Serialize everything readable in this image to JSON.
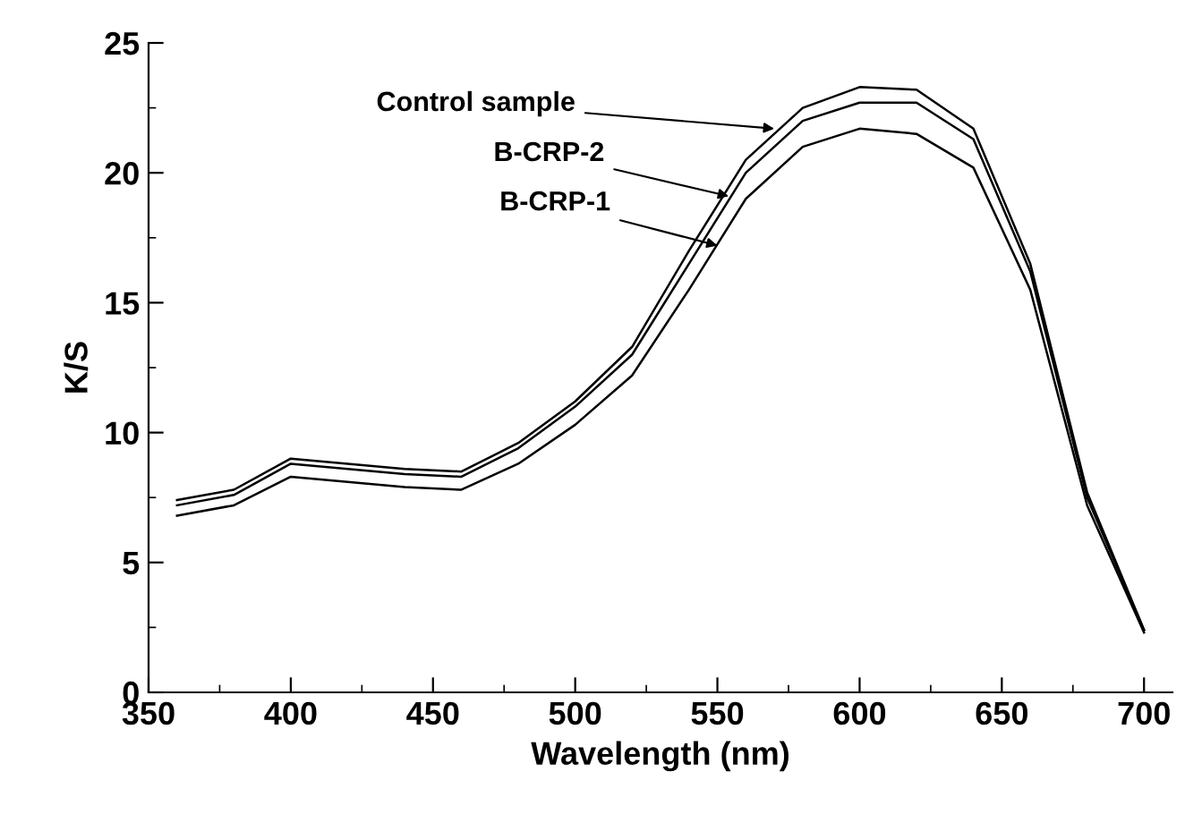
{
  "chart_data": {
    "type": "line",
    "xlabel": "Wavelength (nm)",
    "ylabel": "K/S",
    "x": [
      360,
      380,
      400,
      420,
      440,
      460,
      480,
      500,
      520,
      540,
      560,
      580,
      600,
      620,
      640,
      660,
      680,
      700
    ],
    "series": [
      {
        "color": "#000000",
        "values": [
          7.4,
          7.8,
          9.0,
          8.8,
          8.6,
          8.5,
          9.6,
          11.2,
          13.3,
          17.0,
          20.5,
          22.5,
          23.3,
          23.2,
          21.7,
          16.5,
          7.7,
          2.4
        ]
      },
      {
        "color": "#000000",
        "values": [
          7.2,
          7.6,
          8.8,
          8.6,
          8.4,
          8.3,
          9.4,
          11.0,
          13.0,
          16.5,
          20.0,
          22.0,
          22.7,
          22.7,
          21.3,
          16.2,
          7.5,
          2.4
        ]
      },
      {
        "color": "#000000",
        "values": [
          6.8,
          7.2,
          8.3,
          8.1,
          7.9,
          7.8,
          8.8,
          10.3,
          12.2,
          15.5,
          19.0,
          21.0,
          21.7,
          21.5,
          20.2,
          15.5,
          7.2,
          2.3
        ]
      }
    ],
    "annotations": [
      {
        "text": "Control sample",
        "x": 570,
        "y": 21.7
      },
      {
        "text": "B-CRP-2",
        "x": 554,
        "y": 19.1
      },
      {
        "text": "B-CRP-1",
        "x": 550,
        "y": 17.2
      }
    ],
    "xlim": [
      350,
      710
    ],
    "xticks": [
      350,
      400,
      450,
      500,
      550,
      600,
      650,
      700
    ],
    "ylim": [
      0,
      25
    ],
    "yticks": [
      0,
      5,
      10,
      15,
      20,
      25
    ],
    "grid": false,
    "legend": false,
    "marker": "none",
    "line_style": "solid"
  }
}
